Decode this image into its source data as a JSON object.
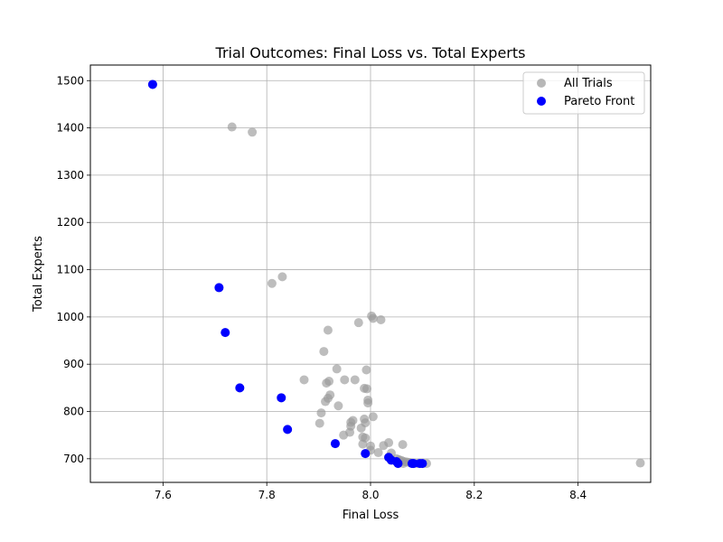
{
  "chart_data": {
    "type": "scatter",
    "title": "Trial Outcomes: Final Loss vs. Total Experts",
    "xlabel": "Final Loss",
    "ylabel": "Total Experts",
    "xlim": [
      7.46,
      8.54
    ],
    "ylim": [
      650,
      1533
    ],
    "xticks": [
      7.6,
      7.8,
      8.0,
      8.2,
      8.4
    ],
    "xtick_labels": [
      "7.6",
      "7.8",
      "8.0",
      "8.2",
      "8.4"
    ],
    "yticks": [
      700,
      800,
      900,
      1000,
      1100,
      1200,
      1300,
      1400,
      1500
    ],
    "ytick_labels": [
      "700",
      "800",
      "900",
      "1000",
      "1100",
      "1200",
      "1300",
      "1400",
      "1500"
    ],
    "grid": true,
    "legend_position": "top-right",
    "series": [
      {
        "name": "All Trials",
        "color": "#999999",
        "points": [
          [
            7.58,
            1492
          ],
          [
            7.733,
            1402
          ],
          [
            7.772,
            1391
          ],
          [
            7.83,
            1085
          ],
          [
            7.81,
            1071
          ],
          [
            7.708,
            1062
          ],
          [
            8.002,
            1002
          ],
          [
            8.005,
            997
          ],
          [
            8.02,
            994
          ],
          [
            7.977,
            988
          ],
          [
            7.918,
            972
          ],
          [
            7.72,
            967
          ],
          [
            7.91,
            927
          ],
          [
            7.935,
            890
          ],
          [
            7.992,
            888
          ],
          [
            7.872,
            867
          ],
          [
            7.95,
            867
          ],
          [
            7.97,
            867
          ],
          [
            7.92,
            864
          ],
          [
            7.915,
            860
          ],
          [
            7.748,
            850
          ],
          [
            7.988,
            849
          ],
          [
            7.993,
            848
          ],
          [
            7.922,
            835
          ],
          [
            7.828,
            829
          ],
          [
            7.918,
            828
          ],
          [
            7.995,
            824
          ],
          [
            7.913,
            821
          ],
          [
            7.995,
            818
          ],
          [
            7.938,
            812
          ],
          [
            7.905,
            797
          ],
          [
            8.005,
            789
          ],
          [
            7.988,
            784
          ],
          [
            7.966,
            781
          ],
          [
            7.962,
            777
          ],
          [
            7.99,
            776
          ],
          [
            7.902,
            775
          ],
          [
            7.962,
            769
          ],
          [
            7.982,
            765
          ],
          [
            7.84,
            762
          ],
          [
            7.96,
            756
          ],
          [
            7.948,
            750
          ],
          [
            7.985,
            746
          ],
          [
            7.99,
            744
          ],
          [
            8.035,
            734
          ],
          [
            7.932,
            732
          ],
          [
            7.985,
            731
          ],
          [
            8.062,
            730
          ],
          [
            8.025,
            728
          ],
          [
            8.0,
            727
          ],
          [
            8.0,
            718
          ],
          [
            8.015,
            713
          ],
          [
            8.04,
            712
          ],
          [
            7.99,
            711
          ],
          [
            8.035,
            703
          ],
          [
            8.05,
            700
          ],
          [
            8.055,
            698
          ],
          [
            8.04,
            697
          ],
          [
            8.06,
            696
          ],
          [
            8.065,
            694
          ],
          [
            8.07,
            693
          ],
          [
            8.075,
            692
          ],
          [
            8.08,
            691
          ],
          [
            8.09,
            690
          ],
          [
            8.1,
            690
          ],
          [
            8.108,
            690
          ],
          [
            8.053,
            690
          ],
          [
            8.063,
            690
          ],
          [
            8.083,
            690
          ],
          [
            8.097,
            690
          ],
          [
            8.52,
            691
          ]
        ]
      },
      {
        "name": "Pareto Front",
        "color": "#0000ff",
        "points": [
          [
            7.58,
            1492
          ],
          [
            7.708,
            1062
          ],
          [
            7.72,
            967
          ],
          [
            7.748,
            850
          ],
          [
            7.828,
            829
          ],
          [
            7.84,
            762
          ],
          [
            7.932,
            732
          ],
          [
            7.99,
            711
          ],
          [
            8.035,
            703
          ],
          [
            8.04,
            697
          ],
          [
            8.05,
            694
          ],
          [
            8.053,
            690
          ],
          [
            8.08,
            690
          ],
          [
            8.083,
            690
          ],
          [
            8.095,
            690
          ],
          [
            8.1,
            690
          ]
        ]
      }
    ]
  }
}
